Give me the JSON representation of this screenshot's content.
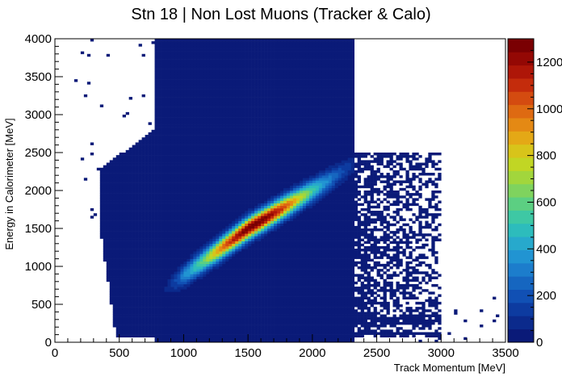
{
  "chart_data": {
    "type": "heatmap",
    "title": "Stn 18 | Non Lost Muons (Tracker & Calo)",
    "xlabel": "Track Momentum [MeV]",
    "ylabel": "Energy in Calorimeter [MeV]",
    "xlim": [
      0,
      3500
    ],
    "ylim": [
      0,
      4000
    ],
    "x_ticks": [
      0,
      500,
      1000,
      1500,
      2000,
      2500,
      3000,
      3500
    ],
    "y_ticks": [
      0,
      500,
      1000,
      1500,
      2000,
      2500,
      3000,
      3500,
      4000
    ],
    "z_range": [
      0,
      1300
    ],
    "z_ticks": [
      0,
      200,
      400,
      600,
      800,
      1000,
      1200
    ],
    "colors": [
      "#0a1a78",
      "#0b2a8c",
      "#0d3ba0",
      "#1150b4",
      "#1666c0",
      "#1c7dcc",
      "#2194d2",
      "#27a9cc",
      "#2dbcbc",
      "#3ec8a4",
      "#5ccf82",
      "#7fd35e",
      "#a2d63c",
      "#c1d624",
      "#d8c41a",
      "#e4a816",
      "#e48914",
      "#de6a12",
      "#d44b10",
      "#c42c0c",
      "#ae1608",
      "#940804",
      "#7a0002"
    ],
    "regions": {
      "ridge_points": [
        [
          1000,
          880
        ],
        [
          1500,
          1500
        ],
        [
          2000,
          2000
        ],
        [
          2300,
          2320
        ]
      ],
      "ridge_peak_counts": 1300,
      "background_box": {
        "x": [
          350,
          2300
        ],
        "y": [
          50,
          3000
        ],
        "counts": "low"
      },
      "upper_scatter": {
        "x": [
          800,
          2300
        ],
        "y": [
          3000,
          4000
        ],
        "counts": "sparse"
      },
      "right_box": {
        "x": [
          2300,
          3000
        ],
        "y": [
          0,
          2500
        ],
        "counts": "low"
      },
      "low_energy_band": {
        "x": [
          2300,
          3000
        ],
        "y": [
          100,
          350
        ],
        "counts": "low"
      }
    }
  }
}
